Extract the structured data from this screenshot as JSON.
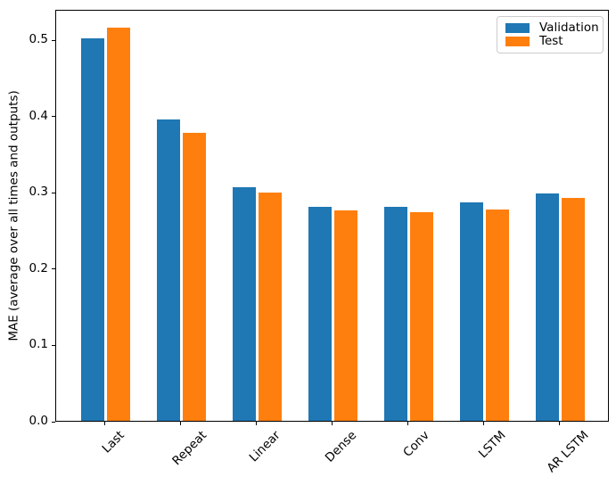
{
  "figure": {
    "background": "#ffffff",
    "text_color": "#000000"
  },
  "chart_data": {
    "type": "bar",
    "title": "",
    "xlabel": "",
    "ylabel": "MAE (average over all times and outputs)",
    "categories": [
      "Last",
      "Repeat",
      "Linear",
      "Dense",
      "Conv",
      "LSTM",
      "AR LSTM"
    ],
    "series": [
      {
        "name": "Validation",
        "color": "#1f77b4",
        "values": [
          0.501,
          0.395,
          0.306,
          0.28,
          0.28,
          0.286,
          0.298
        ]
      },
      {
        "name": "Test",
        "color": "#ff7f0e",
        "values": [
          0.516,
          0.377,
          0.299,
          0.276,
          0.274,
          0.277,
          0.292
        ]
      }
    ],
    "ylim": [
      0,
      0.54
    ],
    "yticks": [
      0.0,
      0.1,
      0.2,
      0.3,
      0.4,
      0.5
    ],
    "ytick_labels": [
      "0.0",
      "0.1",
      "0.2",
      "0.3",
      "0.4",
      "0.5"
    ],
    "xtick_rotation_deg": 45,
    "grid": false,
    "legend": {
      "position": "upper-right",
      "entries": [
        "Validation",
        "Test"
      ]
    }
  }
}
